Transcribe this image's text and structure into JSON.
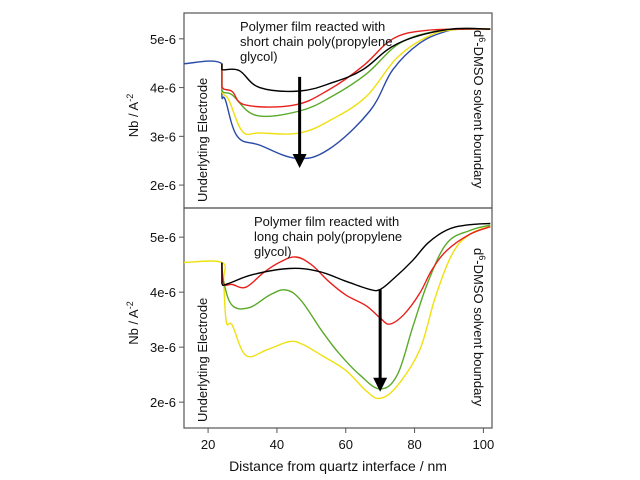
{
  "chart_data": [
    {
      "type": "line",
      "panel": "top",
      "ylabel": "Nb / A",
      "ylabel_sup": "-2",
      "ylim": [
        1.53e-06,
        5.53e-06
      ],
      "xlim": [
        13,
        102.5
      ],
      "yticks": [
        {
          "v": 5e-06,
          "label": "5e-6"
        },
        {
          "v": 4e-06,
          "label": "4e-6"
        },
        {
          "v": 3e-06,
          "label": "3e-6"
        },
        {
          "v": 2e-06,
          "label": "2e-6"
        }
      ],
      "annotation": [
        "Polymer film reacted with",
        "short chain poly(propylene",
        "glycol)"
      ],
      "left_label": "Underlyting Electrode",
      "right_label_sup": "6",
      "right_label_pre": "d",
      "right_label": "-DMSO solvent boundary",
      "arrow": {
        "x": 46.6,
        "y_from": 4.22e-06,
        "y_to": 2.35e-06
      },
      "series": [
        {
          "color": "#2a4aa8",
          "points": [
            [
              13,
              4.49
            ],
            [
              24,
              4.49
            ],
            [
              24,
              3.82
            ],
            [
              25,
              3.75
            ],
            [
              28.5,
              3.0
            ],
            [
              35,
              2.82
            ],
            [
              45.7,
              2.55
            ],
            [
              55,
              2.73
            ],
            [
              67,
              3.52
            ],
            [
              73.7,
              4.37
            ],
            [
              81.5,
              4.91
            ],
            [
              89.5,
              5.16
            ],
            [
              95,
              5.2
            ],
            [
              102,
              5.2
            ]
          ]
        },
        {
          "color": "#f0e010",
          "points": [
            [
              24,
              4.49
            ],
            [
              24,
              3.93
            ],
            [
              26,
              3.75
            ],
            [
              30,
              3.1
            ],
            [
              35,
              3.07
            ],
            [
              46.6,
              3.07
            ],
            [
              56,
              3.35
            ],
            [
              66,
              3.82
            ],
            [
              75,
              4.62
            ],
            [
              84.5,
              5.07
            ],
            [
              92,
              5.19
            ],
            [
              102,
              5.2
            ]
          ]
        },
        {
          "color": "#5aaa2a",
          "points": [
            [
              24,
              4.49
            ],
            [
              24,
              3.95
            ],
            [
              27,
              3.85
            ],
            [
              34,
              3.43
            ],
            [
              46.6,
              3.52
            ],
            [
              56,
              3.82
            ],
            [
              66,
              4.28
            ],
            [
              75.7,
              4.91
            ],
            [
              87,
              5.17
            ],
            [
              95,
              5.2
            ],
            [
              102,
              5.2
            ]
          ]
        },
        {
          "color": "#e8201c",
          "points": [
            [
              24,
              4.49
            ],
            [
              24,
              4.02
            ],
            [
              27,
              3.92
            ],
            [
              31,
              3.64
            ],
            [
              45,
              3.64
            ],
            [
              55,
              3.95
            ],
            [
              65,
              4.44
            ],
            [
              73.7,
              5.0
            ],
            [
              83,
              5.17
            ],
            [
              95,
              5.2
            ],
            [
              102,
              5.2
            ]
          ]
        },
        {
          "color": "#000000",
          "points": [
            [
              24,
              4.49
            ],
            [
              24,
              4.37
            ],
            [
              29,
              4.35
            ],
            [
              35,
              4.0
            ],
            [
              46.6,
              3.93
            ],
            [
              56,
              4.1
            ],
            [
              65,
              4.37
            ],
            [
              75,
              4.9
            ],
            [
              89.5,
              5.19
            ],
            [
              102,
              5.2
            ]
          ]
        }
      ]
    },
    {
      "type": "line",
      "panel": "bottom",
      "ylabel": "Nb / A",
      "ylabel_sup": "-2",
      "xlabel": "Distance from quartz interface / nm",
      "ylim": [
        1.53e-06,
        5.53e-06
      ],
      "xlim": [
        13,
        102.5
      ],
      "xticks": [
        {
          "v": 20,
          "label": "20"
        },
        {
          "v": 40,
          "label": "40"
        },
        {
          "v": 60,
          "label": "60"
        },
        {
          "v": 80,
          "label": "80"
        },
        {
          "v": 100,
          "label": "100"
        }
      ],
      "yticks": [
        {
          "v": 5e-06,
          "label": "5e-6"
        },
        {
          "v": 4e-06,
          "label": "4e-6"
        },
        {
          "v": 3e-06,
          "label": "3e-6"
        },
        {
          "v": 2e-06,
          "label": "2e-6"
        }
      ],
      "annotation": [
        "Polymer film reacted with",
        "long chain poly(propylene",
        "glycol)"
      ],
      "left_label": "Underlyting Electrode",
      "right_label_sup": "6",
      "right_label_pre": "d",
      "right_label": "-DMSO solvent boundary",
      "arrow": {
        "x": 70,
        "y_from": 4.05e-06,
        "y_to": 2.19e-06
      },
      "series": [
        {
          "color": "#f0e010",
          "points": [
            [
              13,
              4.54
            ],
            [
              24,
              4.54
            ],
            [
              24.5,
              4.2
            ],
            [
              25.3,
              3.46
            ],
            [
              27,
              3.4
            ],
            [
              31,
              2.85
            ],
            [
              37,
              2.95
            ],
            [
              43.6,
              3.1
            ],
            [
              47.5,
              3.05
            ],
            [
              53,
              2.85
            ],
            [
              60,
              2.58
            ],
            [
              66,
              2.2
            ],
            [
              70,
              2.07
            ],
            [
              75,
              2.3
            ],
            [
              81.5,
              2.95
            ],
            [
              86,
              3.9
            ],
            [
              91,
              4.7
            ],
            [
              96,
              5.05
            ],
            [
              102,
              5.2
            ]
          ]
        },
        {
          "color": "#5aaa2a",
          "points": [
            [
              24,
              4.54
            ],
            [
              24.5,
              4.2
            ],
            [
              27,
              3.76
            ],
            [
              32,
              3.72
            ],
            [
              38,
              3.95
            ],
            [
              42.6,
              4.04
            ],
            [
              47,
              3.85
            ],
            [
              53,
              3.3
            ],
            [
              58,
              2.89
            ],
            [
              64,
              2.5
            ],
            [
              70,
              2.24
            ],
            [
              75,
              2.5
            ],
            [
              79.5,
              3.37
            ],
            [
              84,
              4.2
            ],
            [
              89.4,
              4.89
            ],
            [
              96,
              5.12
            ],
            [
              102,
              5.22
            ]
          ]
        },
        {
          "color": "#e8201c",
          "points": [
            [
              24,
              4.54
            ],
            [
              24.5,
              4.16
            ],
            [
              27,
              4.14
            ],
            [
              31,
              4.09
            ],
            [
              36,
              4.35
            ],
            [
              41,
              4.55
            ],
            [
              45.5,
              4.64
            ],
            [
              50,
              4.5
            ],
            [
              55,
              4.2
            ],
            [
              60,
              3.95
            ],
            [
              66,
              3.75
            ],
            [
              70,
              3.53
            ],
            [
              72.8,
              3.42
            ],
            [
              77,
              3.6
            ],
            [
              81.5,
              3.98
            ],
            [
              85,
              4.4
            ],
            [
              89.4,
              4.76
            ],
            [
              96,
              5.05
            ],
            [
              102,
              5.19
            ]
          ]
        },
        {
          "color": "#000000",
          "points": [
            [
              24,
              4.54
            ],
            [
              24,
              4.16
            ],
            [
              26,
              4.16
            ],
            [
              33,
              4.32
            ],
            [
              43.6,
              4.43
            ],
            [
              52,
              4.38
            ],
            [
              60,
              4.2
            ],
            [
              67,
              4.05
            ],
            [
              70,
              4.05
            ],
            [
              74,
              4.25
            ],
            [
              79.5,
              4.58
            ],
            [
              84,
              4.9
            ],
            [
              89.4,
              5.13
            ],
            [
              95,
              5.22
            ],
            [
              102,
              5.25
            ]
          ]
        }
      ]
    }
  ]
}
